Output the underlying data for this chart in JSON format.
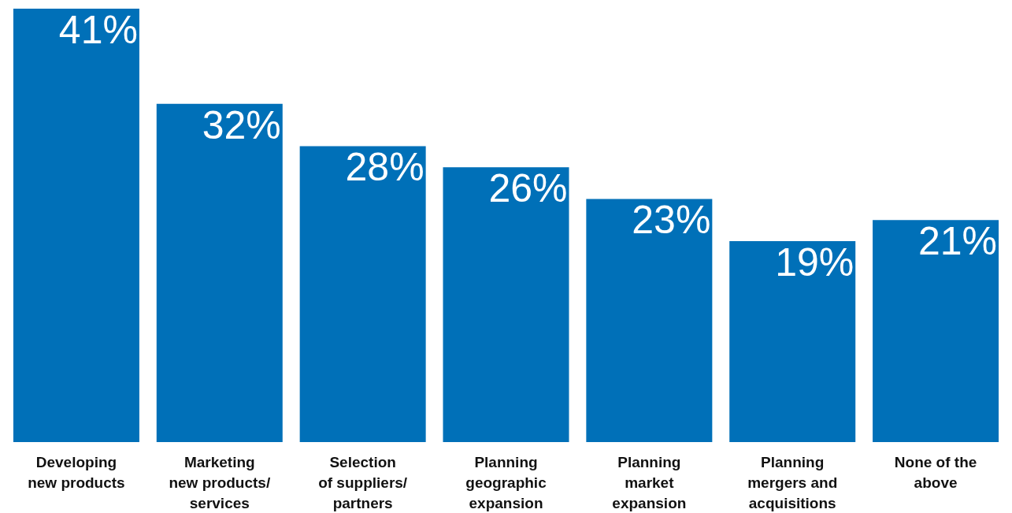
{
  "chart_data": {
    "type": "bar",
    "categories": [
      "Developing\nnew products",
      "Marketing\nnew products/\nservices",
      "Selection\nof suppliers/\npartners",
      "Planning\ngeographic\nexpansion",
      "Planning\nmarket\nexpansion",
      "Planning\nmergers and\nacquisitions",
      "None of the\nabove"
    ],
    "values": [
      41,
      32,
      28,
      26,
      23,
      19,
      21
    ],
    "value_labels": [
      "41%",
      "32%",
      "28%",
      "26%",
      "23%",
      "19%",
      "21%"
    ],
    "color": "#0070b8"
  }
}
